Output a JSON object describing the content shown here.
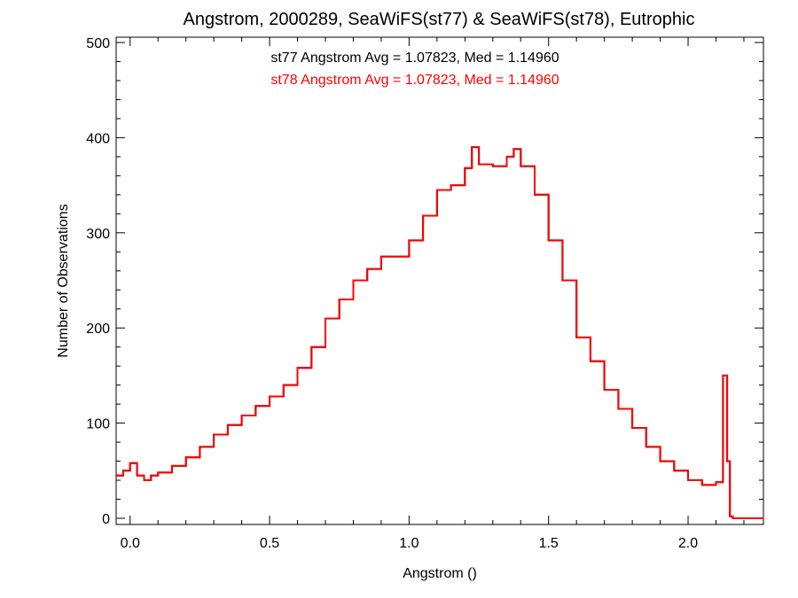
{
  "chart_data": {
    "type": "line",
    "step": true,
    "title": "Angstrom, 2000289, SeaWiFS(st77) & SeaWiFS(st78), Eutrophic",
    "xlabel": "Angstrom ()",
    "ylabel": "Number of Observations",
    "xlim": [
      -0.05,
      2.27
    ],
    "ylim": [
      0,
      500
    ],
    "x_ticks": [
      0.0,
      0.5,
      1.0,
      1.5,
      2.0
    ],
    "x_tick_labels": [
      "0.0",
      "0.5",
      "1.0",
      "1.5",
      "2.0"
    ],
    "y_ticks": [
      0,
      100,
      200,
      300,
      400,
      500
    ],
    "y_tick_labels": [
      "0",
      "100",
      "200",
      "300",
      "400",
      "500"
    ],
    "grid": false,
    "annotations": [
      {
        "text": "st77 Angstrom Avg = 1.07823, Med = 1.14960",
        "color": "#000000"
      },
      {
        "text": "st78 Angstrom Avg = 1.07823, Med = 1.14960",
        "color": "#ff0000"
      }
    ],
    "series": [
      {
        "color": "#000000",
        "x": [
          -0.05,
          -0.025,
          0.0,
          0.025,
          0.05,
          0.075,
          0.1,
          0.15,
          0.2,
          0.25,
          0.3,
          0.35,
          0.4,
          0.45,
          0.5,
          0.55,
          0.6,
          0.65,
          0.7,
          0.75,
          0.8,
          0.85,
          0.9,
          0.95,
          1.0,
          1.05,
          1.1,
          1.15,
          1.2,
          1.225,
          1.25,
          1.3,
          1.35,
          1.375,
          1.4,
          1.45,
          1.5,
          1.55,
          1.6,
          1.65,
          1.7,
          1.75,
          1.8,
          1.85,
          1.9,
          1.95,
          2.0,
          2.05,
          2.1,
          2.125,
          2.14,
          2.15,
          2.16,
          2.27
        ],
        "y": [
          45,
          50,
          58,
          45,
          40,
          45,
          48,
          55,
          64,
          75,
          88,
          98,
          108,
          118,
          128,
          140,
          158,
          180,
          210,
          230,
          250,
          262,
          275,
          275,
          292,
          318,
          345,
          350,
          368,
          390,
          372,
          370,
          380,
          388,
          370,
          340,
          292,
          250,
          190,
          165,
          135,
          115,
          95,
          75,
          60,
          50,
          40,
          35,
          38,
          150,
          60,
          2,
          0,
          0
        ]
      },
      {
        "color": "#ff0000",
        "x": [
          -0.05,
          -0.025,
          0.0,
          0.025,
          0.05,
          0.075,
          0.1,
          0.15,
          0.2,
          0.25,
          0.3,
          0.35,
          0.4,
          0.45,
          0.5,
          0.55,
          0.6,
          0.65,
          0.7,
          0.75,
          0.8,
          0.85,
          0.9,
          0.95,
          1.0,
          1.05,
          1.1,
          1.15,
          1.2,
          1.225,
          1.25,
          1.3,
          1.35,
          1.375,
          1.4,
          1.45,
          1.5,
          1.55,
          1.6,
          1.65,
          1.7,
          1.75,
          1.8,
          1.85,
          1.9,
          1.95,
          2.0,
          2.05,
          2.1,
          2.125,
          2.14,
          2.15,
          2.16,
          2.27
        ],
        "y": [
          45,
          50,
          58,
          45,
          40,
          45,
          48,
          55,
          64,
          75,
          88,
          98,
          108,
          118,
          128,
          140,
          158,
          180,
          210,
          230,
          250,
          262,
          275,
          275,
          292,
          318,
          345,
          350,
          368,
          390,
          372,
          370,
          380,
          388,
          370,
          340,
          292,
          250,
          190,
          165,
          135,
          115,
          95,
          75,
          60,
          50,
          40,
          35,
          38,
          150,
          60,
          2,
          0,
          0
        ]
      }
    ]
  }
}
